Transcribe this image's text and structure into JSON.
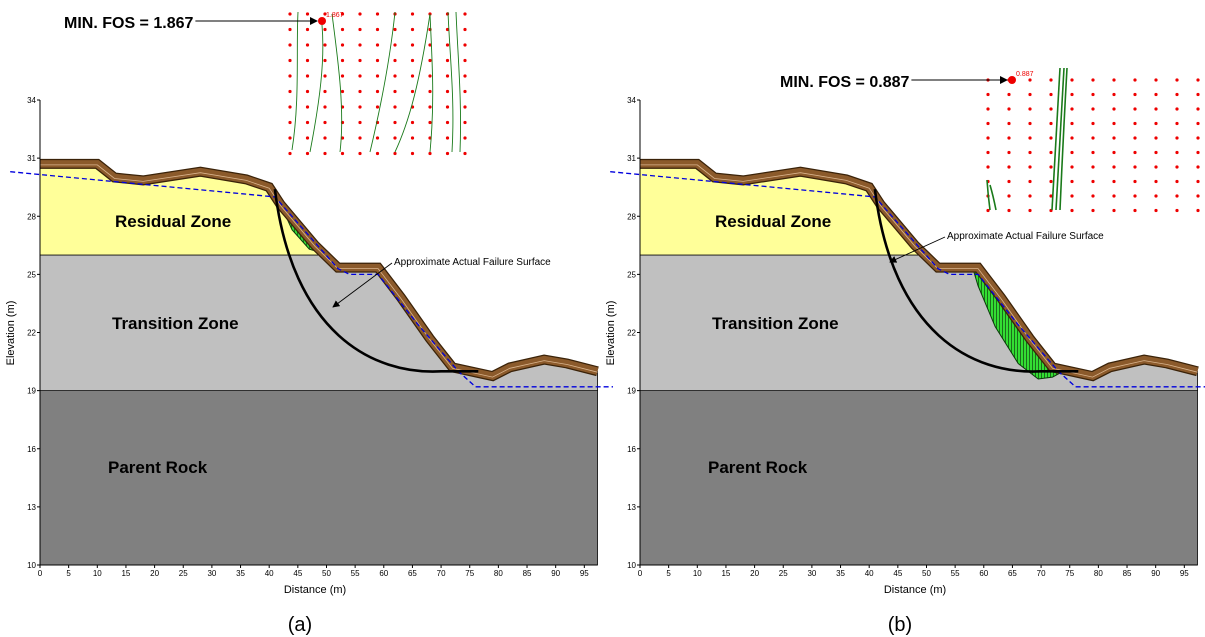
{
  "chart_data": [
    {
      "type": "slope",
      "xlabel": "Distance (m)",
      "ylabel": "Elevation (m)",
      "xlim": [
        0,
        97.3
      ],
      "ylim": [
        10,
        34
      ],
      "xticks": [
        0,
        5,
        10,
        15,
        20,
        25,
        30,
        35,
        40,
        45,
        50,
        55,
        60,
        65,
        70,
        75,
        80,
        85,
        90,
        95
      ],
      "yticks": [
        10,
        13,
        16,
        19,
        22,
        25,
        28,
        31,
        34
      ],
      "zones": [
        "Residual Zone",
        "Transition Zone",
        "Parent Rock"
      ],
      "min_fos_label": "MIN. FOS = 1.867",
      "min_fos": 1.867,
      "annotation": "Approximate Actual Failure Surface",
      "caption": "(a)"
    },
    {
      "type": "slope",
      "xlabel": "Distance (m)",
      "ylabel": "Elevation (m)",
      "xlim": [
        0,
        97.3
      ],
      "ylim": [
        10,
        34
      ],
      "xticks": [
        0,
        5,
        10,
        15,
        20,
        25,
        30,
        35,
        40,
        45,
        50,
        55,
        60,
        65,
        70,
        75,
        80,
        85,
        90,
        95
      ],
      "yticks": [
        10,
        13,
        16,
        19,
        22,
        25,
        28,
        31,
        34
      ],
      "zones": [
        "Residual Zone",
        "Transition Zone",
        "Parent Rock"
      ],
      "min_fos_label": "MIN. FOS = 0.887",
      "min_fos": 0.887,
      "annotation": "Approximate Actual Failure Surface",
      "caption": "(b)"
    }
  ]
}
